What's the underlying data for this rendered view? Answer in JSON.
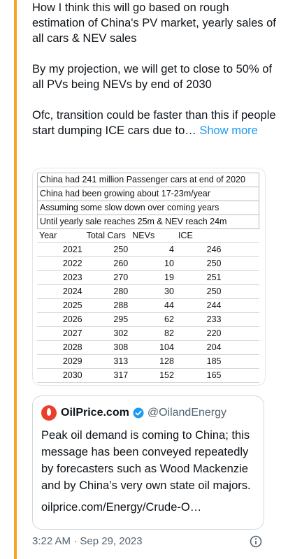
{
  "tweet": {
    "paragraphs": [
      "How I think this will go based on rough estimation of China's PV market, yearly sales of all cars & NEV sales",
      "By my projection, we will get to close to 50% of all PVs being NEVs by end of 2030",
      "Ofc, transition could be faster than this if people start dumping ICE cars due to…"
    ],
    "show_more": "Show more",
    "thread_color": "#f5a623",
    "link_color": "#1d9bf0"
  },
  "sheet": {
    "notes": [
      "China had 241 million Passenger cars at end of 2020",
      "China had been growing about 17-23m/year",
      "Assuming some slow down over coming years",
      "Until yearly sale reaches 25m & NEV reach 24m"
    ],
    "headers": [
      "Year",
      "Total Cars",
      "NEVs",
      "ICE"
    ],
    "rows": [
      [
        "2021",
        "250",
        "4",
        "246"
      ],
      [
        "2022",
        "260",
        "10",
        "250"
      ],
      [
        "2023",
        "270",
        "19",
        "251"
      ],
      [
        "2024",
        "280",
        "30",
        "250"
      ],
      [
        "2025",
        "288",
        "44",
        "244"
      ],
      [
        "2026",
        "295",
        "62",
        "233"
      ],
      [
        "2027",
        "302",
        "82",
        "220"
      ],
      [
        "2028",
        "308",
        "104",
        "204"
      ],
      [
        "2029",
        "313",
        "128",
        "185"
      ],
      [
        "2030",
        "317",
        "152",
        "165"
      ]
    ]
  },
  "quote": {
    "name": "OilPrice.com",
    "handle": "@OilandEnergy",
    "body": "Peak oil demand is coming to China; this message has been conveyed repeatedly by forecasters such as Wood Mackenzie and by China’s very own state oil majors.",
    "link": "oilprice.com/Energy/Crude-O…",
    "logo_color": "#e8402b",
    "verified_color": "#1d9bf0"
  },
  "meta": {
    "timestamp": "3:22 AM · Sep 29, 2023",
    "info_icon": "info-icon"
  }
}
